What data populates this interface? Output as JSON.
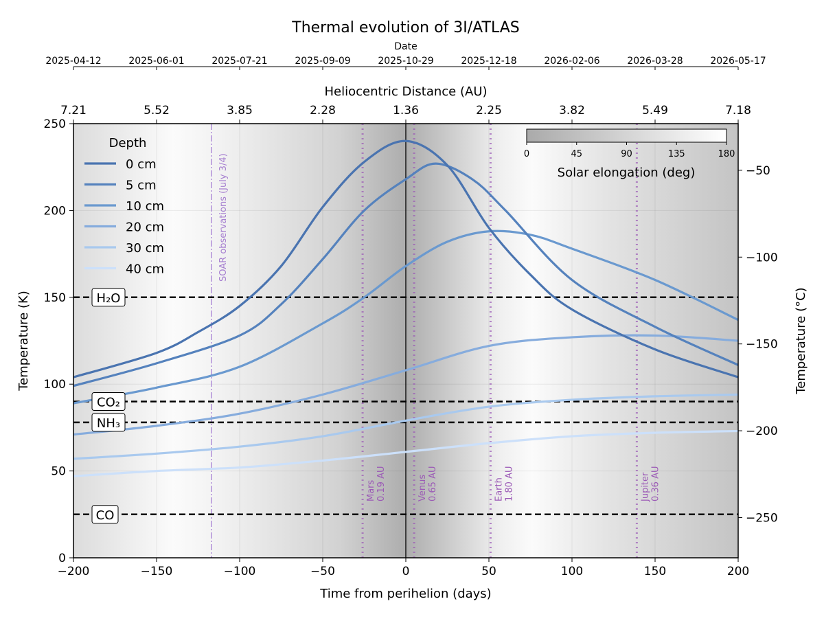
{
  "chart_data": {
    "type": "line",
    "title": "Thermal evolution of 3I/ATLAS",
    "xlabel": "Time from perihelion (days)",
    "ylabel": "Temperature (K)",
    "ylabel_right": "Temperature (°C)",
    "xlim": [
      -200,
      200
    ],
    "ylim": [
      0,
      250
    ],
    "xticks": [
      -200,
      -150,
      -100,
      -50,
      0,
      50,
      100,
      150,
      200
    ],
    "xtick_labels": [
      "−200",
      "−150",
      "−100",
      "−50",
      "0",
      "50",
      "100",
      "150",
      "200"
    ],
    "yticks": [
      0,
      50,
      100,
      150,
      200,
      250
    ],
    "right_yticks": [
      -50,
      -100,
      -150,
      -200,
      -250
    ],
    "right_ytick_labels": [
      "−50",
      "−100",
      "−150",
      "−200",
      "−250"
    ],
    "top_axis_distance": {
      "label": "Heliocentric Distance (AU)",
      "tick_labels": [
        "7.21",
        "5.52",
        "3.85",
        "2.28",
        "1.36",
        "2.25",
        "3.82",
        "5.49",
        "7.18"
      ]
    },
    "top_axis_date": {
      "label": "Date",
      "tick_labels": [
        "2025-04-12",
        "2025-06-01",
        "2025-07-21",
        "2025-09-09",
        "2025-10-29",
        "2025-12-18",
        "2026-02-06",
        "2026-03-28",
        "2026-05-17"
      ]
    },
    "grid": true,
    "legend": {
      "title": "Depth",
      "placement": "top-left"
    },
    "series": [
      {
        "name": "0 cm",
        "color": "#4a74b0",
        "x": [
          -200,
          -150,
          -125,
          -100,
          -75,
          -50,
          -25,
          0,
          25,
          50,
          75,
          100,
          150,
          200
        ],
        "y": [
          104,
          118,
          130,
          145,
          168,
          202,
          228,
          240,
          226,
          190,
          163,
          143,
          120,
          104
        ]
      },
      {
        "name": "5 cm",
        "color": "#5582bd",
        "x": [
          -200,
          -150,
          -100,
          -75,
          -50,
          -25,
          0,
          18,
          40,
          60,
          100,
          150,
          200
        ],
        "y": [
          99,
          112,
          128,
          146,
          172,
          200,
          218,
          227,
          218,
          200,
          160,
          133,
          111
        ]
      },
      {
        "name": "10 cm",
        "color": "#6a99cf",
        "x": [
          -200,
          -150,
          -100,
          -50,
          -25,
          0,
          25,
          50,
          75,
          100,
          150,
          200
        ],
        "y": [
          89,
          98,
          110,
          135,
          150,
          168,
          182,
          188,
          186,
          178,
          160,
          137
        ]
      },
      {
        "name": "20 cm",
        "color": "#86acdd",
        "x": [
          -200,
          -150,
          -100,
          -50,
          0,
          50,
          100,
          150,
          200
        ],
        "y": [
          71,
          76,
          83,
          94,
          108,
          122,
          127,
          128,
          125
        ]
      },
      {
        "name": "30 cm",
        "color": "#a9c9ee",
        "x": [
          -200,
          -150,
          -100,
          -50,
          0,
          50,
          100,
          150,
          200
        ],
        "y": [
          57,
          60,
          64,
          70,
          79,
          87,
          91,
          93,
          94
        ]
      },
      {
        "name": "40 cm",
        "color": "#cce0fa",
        "x": [
          -200,
          -150,
          -100,
          -50,
          0,
          50,
          100,
          150,
          200
        ],
        "y": [
          47,
          50,
          52,
          56,
          61,
          66,
          70,
          72,
          73
        ]
      }
    ],
    "ice_lines": [
      {
        "label": "H₂O",
        "value": 150
      },
      {
        "label": "CO₂",
        "value": 90
      },
      {
        "label": "NH₃",
        "value": 78
      },
      {
        "label": "CO",
        "value": 25
      }
    ],
    "events": [
      {
        "label": "SOAR observations (July 3/4)",
        "day": -117,
        "style": "dashdot"
      },
      {
        "label": "Mars",
        "sub": "0.19 AU",
        "day": -26
      },
      {
        "label": "Venus",
        "sub": "0.65 AU",
        "day": 5
      },
      {
        "label": "Earth",
        "sub": "1.80 AU",
        "day": 51
      },
      {
        "label": "Jupiter",
        "sub": "0.36 AU",
        "day": 139
      }
    ],
    "perihelion_day": 0,
    "colorbar": {
      "label": "Solar elongation (deg)",
      "range": [
        0,
        180
      ],
      "ticks": [
        "0",
        "45",
        "90",
        "135",
        "180"
      ],
      "colormap": "gray-to-white"
    },
    "event_color": "#9b59b6"
  }
}
